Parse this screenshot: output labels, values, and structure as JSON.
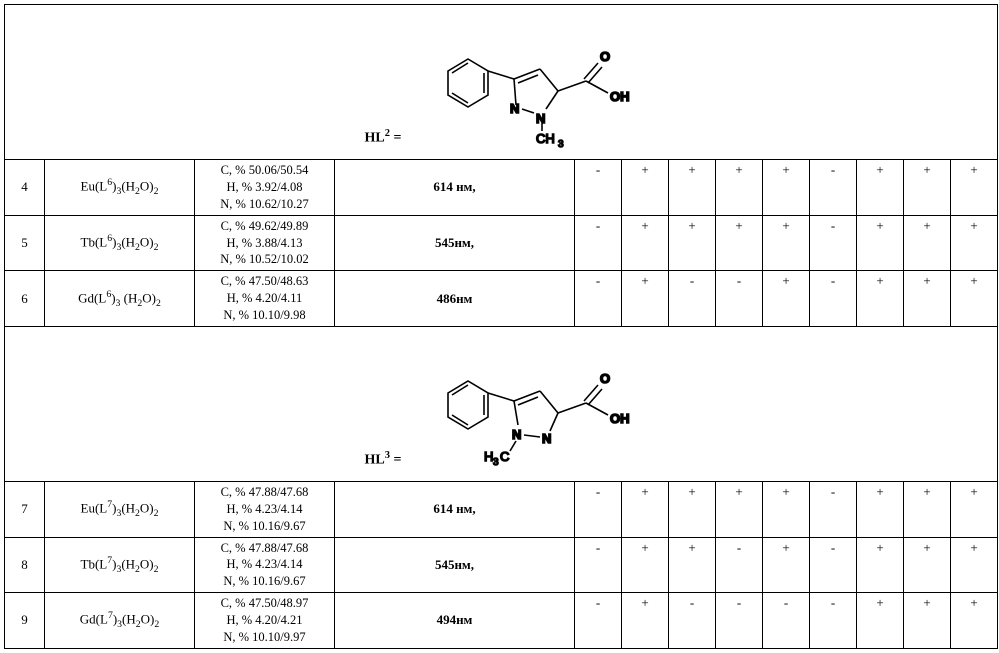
{
  "ligand_headers": [
    {
      "label_html": "HL<sup>2</sup> =",
      "svg_id": "mol-1"
    },
    {
      "label_html": "HL<sup>3</sup> =",
      "svg_id": "mol-2"
    }
  ],
  "molecule_style": {
    "stroke": "#000000",
    "stroke_width": 1.6,
    "font_family": "Arial, sans-serif",
    "font_size": 13,
    "bg": "#ffffff"
  },
  "sections": [
    {
      "header_ref": 0,
      "rows": [
        {
          "idx": "4",
          "formula_html": "Eu(L<sup>6</sup>)<sub>3</sub>(H<sub>2</sub>O)<sub>2</sub>",
          "analysis": [
            "C, % 50.06/50.54",
            "H, % 3.92/4.08",
            "N, % 10.62/10.27"
          ],
          "wavelength": "614 нм,",
          "marks": [
            "-",
            "+",
            "+",
            "+",
            "+",
            "-",
            "+",
            "+",
            "+"
          ]
        },
        {
          "idx": "5",
          "formula_html": "Tb(L<sup>6</sup>)<sub>3</sub>(H<sub>2</sub>O)<sub>2</sub>",
          "analysis": [
            "C, % 49.62/49.89",
            "H, % 3.88/4.13",
            "N, % 10.52/10.02"
          ],
          "wavelength": "545нм,",
          "marks": [
            "-",
            "+",
            "+",
            "+",
            "+",
            "-",
            "+",
            "+",
            "+"
          ]
        },
        {
          "idx": "6",
          "formula_html": "Gd(L<sup>6</sup>)<sub>3</sub> (H<sub>2</sub>O)<sub>2</sub>",
          "analysis": [
            "C, % 47.50/48.63",
            "H, % 4.20/4.11",
            "N, % 10.10/9.98"
          ],
          "wavelength": "486нм",
          "marks": [
            "-",
            "+",
            "-",
            "-",
            "+",
            "-",
            "+",
            "+",
            "+"
          ]
        }
      ]
    },
    {
      "header_ref": 1,
      "rows": [
        {
          "idx": "7",
          "formula_html": "Eu(L<sup>7</sup>)<sub>3</sub>(H<sub>2</sub>O)<sub>2</sub>",
          "analysis": [
            "C, % 47.88/47.68",
            "H, % 4.23/4.14",
            "N, % 10.16/9.67"
          ],
          "wavelength": "614 нм,",
          "marks": [
            "-",
            "+",
            "+",
            "+",
            "+",
            "-",
            "+",
            "+",
            "+"
          ]
        },
        {
          "idx": "8",
          "formula_html": "Tb(L<sup>7</sup>)<sub>3</sub>(H<sub>2</sub>O)<sub>2</sub>",
          "analysis": [
            "C, % 47.88/47.68",
            "H, % 4.23/4.14",
            "N, % 10.16/9.67"
          ],
          "wavelength": "545нм,",
          "marks": [
            "-",
            "+",
            "+",
            "-",
            "+",
            "-",
            "+",
            "+",
            "+"
          ]
        },
        {
          "idx": "9",
          "formula_html": "Gd(L<sup>7</sup>)<sub>3</sub>(H<sub>2</sub>O)<sub>2</sub>",
          "analysis": [
            "C, % 47.50/48.97",
            "H, % 4.20/4.21",
            "N, % 10.10/9.97"
          ],
          "wavelength": "494нм",
          "marks": [
            "-",
            "+",
            "-",
            "-",
            "-",
            "-",
            "+",
            "+",
            "+"
          ]
        }
      ]
    }
  ],
  "columns": {
    "count_marks": 9
  }
}
